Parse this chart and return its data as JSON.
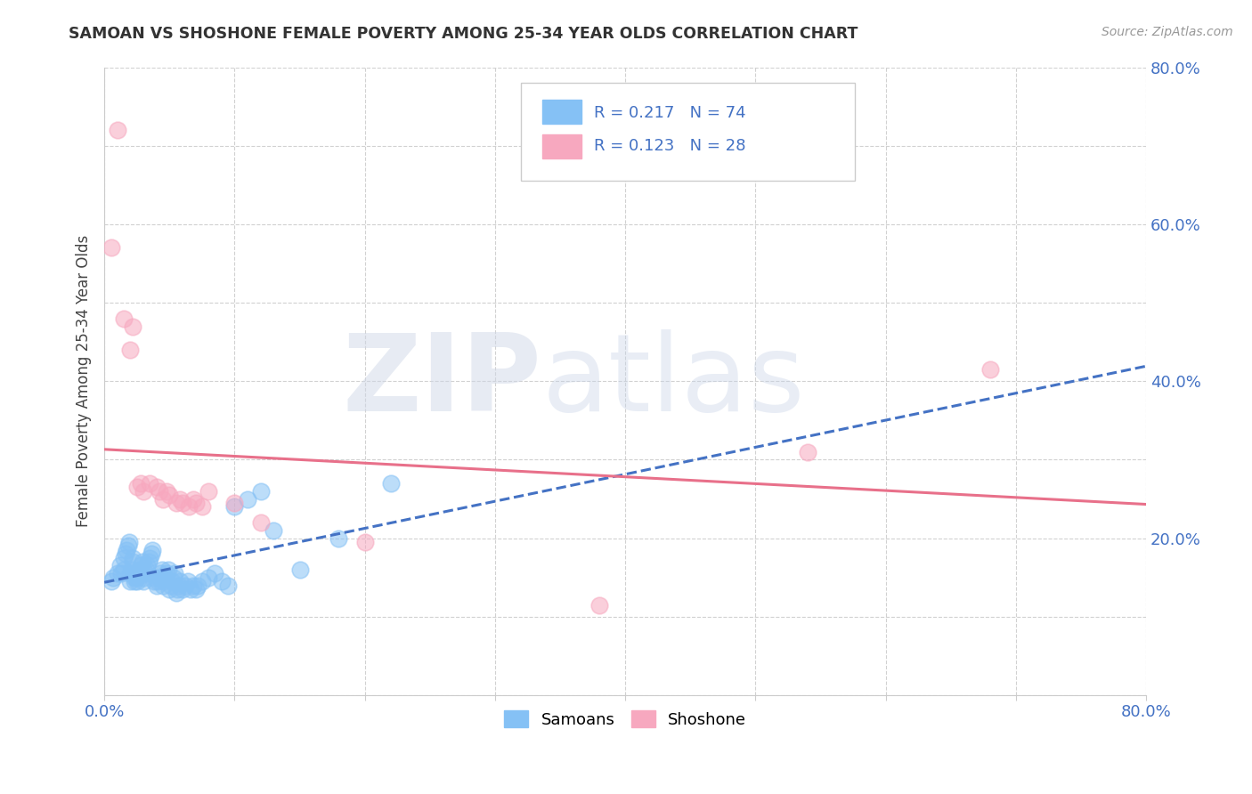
{
  "title": "SAMOAN VS SHOSHONE FEMALE POVERTY AMONG 25-34 YEAR OLDS CORRELATION CHART",
  "source": "Source: ZipAtlas.com",
  "ylabel": "Female Poverty Among 25-34 Year Olds",
  "xlim": [
    0,
    0.8
  ],
  "ylim": [
    0,
    0.8
  ],
  "samoan_color": "#85C1F5",
  "shoshone_color": "#F7A8BF",
  "samoan_trend_color": "#4472C4",
  "shoshone_trend_color": "#E8708A",
  "samoan_R": 0.217,
  "samoan_N": 74,
  "shoshone_R": 0.123,
  "shoshone_N": 28,
  "legend_label_samoan": "Samoans",
  "legend_label_shoshone": "Shoshone",
  "watermark_zip": "ZIP",
  "watermark_atlas": "atlas",
  "background_color": "#ffffff",
  "samoan_x": [
    0.005,
    0.007,
    0.01,
    0.012,
    0.013,
    0.015,
    0.015,
    0.016,
    0.017,
    0.018,
    0.019,
    0.02,
    0.02,
    0.021,
    0.022,
    0.022,
    0.023,
    0.023,
    0.024,
    0.025,
    0.025,
    0.026,
    0.027,
    0.028,
    0.029,
    0.03,
    0.03,
    0.031,
    0.032,
    0.033,
    0.034,
    0.035,
    0.036,
    0.037,
    0.038,
    0.039,
    0.04,
    0.041,
    0.042,
    0.043,
    0.044,
    0.045,
    0.046,
    0.047,
    0.048,
    0.049,
    0.05,
    0.051,
    0.052,
    0.053,
    0.054,
    0.055,
    0.056,
    0.057,
    0.058,
    0.06,
    0.062,
    0.064,
    0.066,
    0.068,
    0.07,
    0.072,
    0.075,
    0.08,
    0.085,
    0.09,
    0.095,
    0.1,
    0.11,
    0.12,
    0.13,
    0.15,
    0.18,
    0.22
  ],
  "samoan_y": [
    0.145,
    0.15,
    0.155,
    0.165,
    0.155,
    0.16,
    0.175,
    0.18,
    0.185,
    0.19,
    0.195,
    0.145,
    0.155,
    0.16,
    0.17,
    0.175,
    0.145,
    0.15,
    0.155,
    0.145,
    0.15,
    0.155,
    0.16,
    0.165,
    0.17,
    0.145,
    0.15,
    0.155,
    0.16,
    0.165,
    0.17,
    0.175,
    0.18,
    0.185,
    0.145,
    0.15,
    0.14,
    0.145,
    0.15,
    0.155,
    0.16,
    0.14,
    0.145,
    0.15,
    0.155,
    0.16,
    0.135,
    0.14,
    0.145,
    0.15,
    0.155,
    0.13,
    0.135,
    0.14,
    0.145,
    0.135,
    0.14,
    0.145,
    0.135,
    0.14,
    0.135,
    0.14,
    0.145,
    0.15,
    0.155,
    0.145,
    0.14,
    0.24,
    0.25,
    0.26,
    0.21,
    0.16,
    0.2,
    0.27
  ],
  "shoshone_x": [
    0.005,
    0.01,
    0.015,
    0.02,
    0.022,
    0.025,
    0.028,
    0.03,
    0.035,
    0.04,
    0.042,
    0.045,
    0.048,
    0.05,
    0.055,
    0.058,
    0.06,
    0.065,
    0.068,
    0.07,
    0.075,
    0.08,
    0.1,
    0.12,
    0.2,
    0.38,
    0.54,
    0.68
  ],
  "shoshone_y": [
    0.57,
    0.72,
    0.48,
    0.44,
    0.47,
    0.265,
    0.27,
    0.26,
    0.27,
    0.265,
    0.26,
    0.25,
    0.26,
    0.255,
    0.245,
    0.25,
    0.245,
    0.24,
    0.25,
    0.245,
    0.24,
    0.26,
    0.245,
    0.22,
    0.195,
    0.115,
    0.31,
    0.415
  ]
}
